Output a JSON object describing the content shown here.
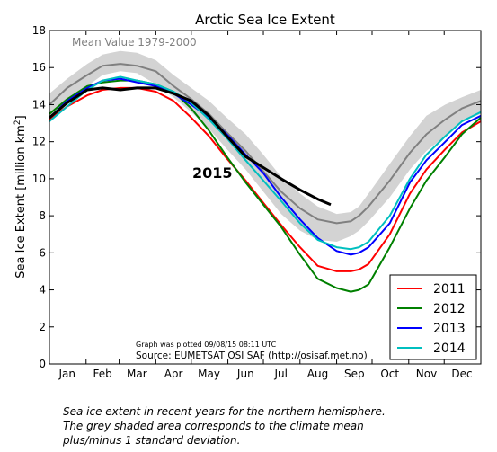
{
  "chart_data": {
    "type": "line",
    "title": "Arctic Sea Ice Extent",
    "ylabel_prefix": "Sea Ice Extent [million km",
    "ylabel_sup": "2",
    "ylabel_suffix": "]",
    "xlabel": "",
    "ylim": [
      0,
      18
    ],
    "xlim": [
      0,
      365
    ],
    "yticks": [
      0,
      2,
      4,
      6,
      8,
      10,
      12,
      14,
      16,
      18
    ],
    "yticks_labels": [
      "0",
      "2",
      "4",
      "6",
      "8",
      "10",
      "12",
      "14",
      "16",
      "18"
    ],
    "months": [
      "Jan",
      "Feb",
      "Mar",
      "Apr",
      "May",
      "Jun",
      "Jul",
      "Aug",
      "Sep",
      "Oct",
      "Nov",
      "Dec"
    ],
    "month_day_centers": [
      15,
      45,
      74,
      105,
      135,
      166,
      196,
      227,
      258,
      288,
      319,
      349
    ],
    "grid": false,
    "legend_position": "bottom-right",
    "mean_label": "Mean Value 1979-2000",
    "annotation_2015": "2015",
    "plotted_note": "Graph was plotted 09/08/15 08:11 UTC",
    "source_note": "Source: EUMETSAT OSI SAF (http://osisaf.met.no)",
    "colors": {
      "2011": "#ff0000",
      "2012": "#008000",
      "2013": "#0000ff",
      "2014": "#00bfbf",
      "2015": "#000000",
      "mean": "#808080",
      "band": "#d3d3d3"
    },
    "band": {
      "x": [
        0,
        15,
        32,
        45,
        60,
        74,
        90,
        105,
        120,
        135,
        150,
        166,
        181,
        196,
        212,
        227,
        243,
        255,
        262,
        270,
        288,
        305,
        319,
        335,
        349,
        365
      ],
      "upper": [
        14.6,
        15.4,
        16.2,
        16.7,
        16.9,
        16.8,
        16.4,
        15.6,
        14.9,
        14.2,
        13.3,
        12.4,
        11.3,
        10.1,
        9.2,
        8.5,
        8.1,
        8.2,
        8.5,
        9.2,
        10.8,
        12.3,
        13.4,
        14.0,
        14.4,
        14.8
      ],
      "lower": [
        13.4,
        14.2,
        15.0,
        15.6,
        15.8,
        15.7,
        15.1,
        14.4,
        13.6,
        12.7,
        11.6,
        10.5,
        9.3,
        8.1,
        7.2,
        6.7,
        6.6,
        6.9,
        7.2,
        7.7,
        9.0,
        10.5,
        11.5,
        12.3,
        13.1,
        13.5
      ]
    },
    "mean": {
      "x": [
        0,
        15,
        32,
        45,
        60,
        74,
        90,
        105,
        120,
        135,
        150,
        166,
        181,
        196,
        212,
        227,
        243,
        255,
        262,
        270,
        288,
        305,
        319,
        335,
        349,
        365
      ],
      "y": [
        14.0,
        14.9,
        15.6,
        16.1,
        16.2,
        16.1,
        15.8,
        15.0,
        14.3,
        13.5,
        12.5,
        11.5,
        10.4,
        9.3,
        8.4,
        7.8,
        7.6,
        7.7,
        8.0,
        8.5,
        9.9,
        11.4,
        12.4,
        13.2,
        13.8,
        14.2
      ]
    },
    "series": [
      {
        "name": "2011",
        "x": [
          0,
          15,
          32,
          45,
          60,
          74,
          90,
          105,
          120,
          135,
          150,
          166,
          181,
          196,
          212,
          227,
          243,
          255,
          262,
          270,
          288,
          305,
          319,
          335,
          349,
          365
        ],
        "y": [
          13.2,
          13.9,
          14.5,
          14.8,
          14.9,
          14.9,
          14.7,
          14.2,
          13.3,
          12.3,
          11.1,
          9.9,
          8.7,
          7.5,
          6.3,
          5.3,
          5.0,
          5.0,
          5.1,
          5.4,
          7.0,
          9.2,
          10.5,
          11.6,
          12.5,
          13.1
        ]
      },
      {
        "name": "2012",
        "x": [
          0,
          15,
          32,
          45,
          60,
          74,
          90,
          105,
          120,
          135,
          150,
          166,
          181,
          196,
          212,
          227,
          243,
          255,
          262,
          270,
          288,
          305,
          319,
          335,
          349,
          365
        ],
        "y": [
          13.5,
          14.3,
          15.0,
          15.2,
          15.3,
          15.3,
          15.1,
          14.7,
          13.8,
          12.6,
          11.2,
          9.8,
          8.6,
          7.4,
          5.9,
          4.6,
          4.1,
          3.9,
          4.0,
          4.3,
          6.3,
          8.4,
          9.9,
          11.2,
          12.4,
          13.3
        ]
      },
      {
        "name": "2013",
        "x": [
          0,
          15,
          32,
          45,
          60,
          74,
          90,
          105,
          120,
          135,
          150,
          166,
          181,
          196,
          212,
          227,
          243,
          255,
          262,
          270,
          288,
          305,
          319,
          335,
          349,
          365
        ],
        "y": [
          13.3,
          14.2,
          14.9,
          15.3,
          15.4,
          15.2,
          15.0,
          14.6,
          14.0,
          13.3,
          12.4,
          11.3,
          10.3,
          9.0,
          7.8,
          6.8,
          6.1,
          5.9,
          6.0,
          6.3,
          7.6,
          9.8,
          11.0,
          12.0,
          12.9,
          13.4
        ]
      },
      {
        "name": "2014",
        "x": [
          0,
          15,
          32,
          45,
          60,
          74,
          90,
          105,
          120,
          135,
          150,
          166,
          181,
          196,
          212,
          227,
          243,
          255,
          262,
          270,
          288,
          305,
          319,
          335,
          349,
          365
        ],
        "y": [
          13.1,
          13.9,
          14.8,
          15.3,
          15.5,
          15.3,
          15.1,
          14.7,
          14.1,
          13.2,
          12.2,
          11.0,
          9.9,
          8.8,
          7.6,
          6.7,
          6.3,
          6.2,
          6.3,
          6.6,
          8.0,
          10.0,
          11.3,
          12.3,
          13.1,
          13.6
        ]
      },
      {
        "name": "2015",
        "x": [
          0,
          15,
          32,
          45,
          60,
          74,
          90,
          105,
          120,
          135,
          150,
          166,
          181,
          196,
          212,
          227,
          238
        ],
        "y": [
          13.3,
          14.1,
          14.8,
          14.9,
          14.8,
          14.9,
          14.9,
          14.6,
          14.2,
          13.4,
          12.3,
          11.2,
          10.6,
          10.0,
          9.4,
          8.9,
          8.6
        ]
      }
    ]
  },
  "caption": {
    "line1": "Sea ice extent in recent years for the northern hemisphere.",
    "line2": "The grey shaded area corresponds to the climate mean",
    "line3": "plus/minus 1 standard deviation."
  }
}
